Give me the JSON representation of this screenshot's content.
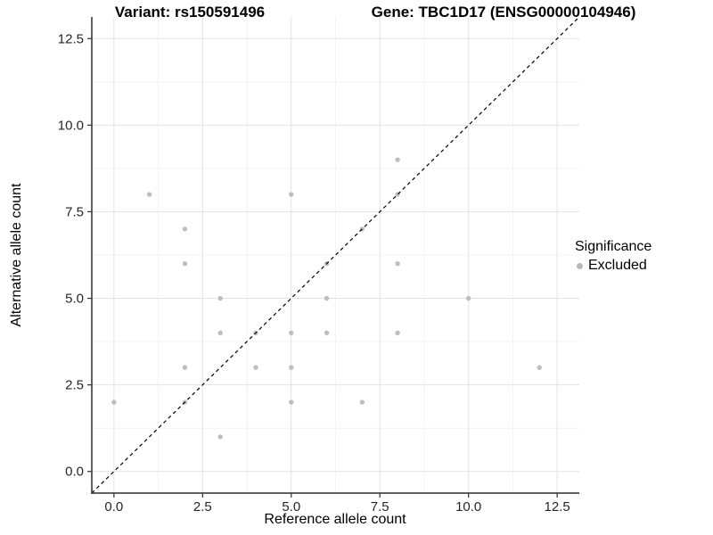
{
  "titles": {
    "variant": "Variant: rs150591496",
    "gene": "Gene: TBC1D17 (ENSG00000104946)"
  },
  "legend": {
    "title": "Significance",
    "items": [
      {
        "label": "Excluded",
        "color": "#b9b9b9"
      }
    ],
    "position": "right"
  },
  "colors": {
    "background": "#ffffff",
    "point": "#bebebe",
    "major_grid": "#e3e3e3",
    "minor_grid": "#f0f0f0",
    "axis_line": "#2f2f2f",
    "tick_text": "#262626",
    "identity_line": "#000000"
  },
  "chart_data": {
    "type": "scatter",
    "title_left": "Variant: rs150591496",
    "title_right": "Gene: TBC1D17 (ENSG00000104946)",
    "xlabel": "Reference allele count",
    "ylabel": "Alternative allele count",
    "xlim": [
      -0.625,
      13.125
    ],
    "ylim": [
      -0.625,
      13.125
    ],
    "x_ticks": {
      "values": [
        0,
        2.5,
        5,
        7.5,
        10,
        12.5
      ],
      "labels": [
        "0.0",
        "2.5",
        "5.0",
        "7.5",
        "10.0",
        "12.5"
      ]
    },
    "y_ticks": {
      "values": [
        0,
        2.5,
        5,
        7.5,
        10,
        12.5
      ],
      "labels": [
        "0.0",
        "2.5",
        "5.0",
        "7.5",
        "10.0",
        "12.5"
      ]
    },
    "minor_ticks": [
      1.25,
      3.75,
      6.25,
      8.75,
      11.25
    ],
    "grid": true,
    "legend_position": "right",
    "identity_line": {
      "type": "abline",
      "slope": 1,
      "intercept": 0,
      "style": "dashed",
      "color": "#000000"
    },
    "series": [
      {
        "name": "Excluded",
        "color": "#bebebe",
        "points": [
          [
            0,
            2
          ],
          [
            1,
            8
          ],
          [
            2,
            2
          ],
          [
            2,
            3
          ],
          [
            2,
            6
          ],
          [
            2,
            7
          ],
          [
            3,
            1
          ],
          [
            3,
            4
          ],
          [
            3,
            5
          ],
          [
            4,
            3
          ],
          [
            4,
            4
          ],
          [
            5,
            2
          ],
          [
            5,
            3
          ],
          [
            5,
            4
          ],
          [
            5,
            8
          ],
          [
            6,
            4
          ],
          [
            6,
            5
          ],
          [
            6,
            6
          ],
          [
            7,
            2
          ],
          [
            7,
            7
          ],
          [
            8,
            4
          ],
          [
            8,
            6
          ],
          [
            8,
            8
          ],
          [
            8,
            9
          ],
          [
            10,
            5
          ],
          [
            12,
            3
          ]
        ]
      }
    ]
  }
}
